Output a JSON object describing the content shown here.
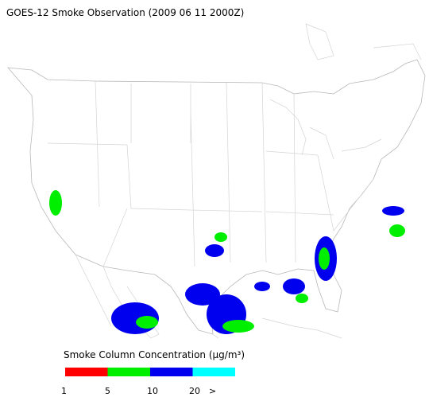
{
  "title": "GOES-12 Smoke Observation (2009 06 11  2000Z)",
  "legend": {
    "label": "Smoke Column Concentration (μg/m³)",
    "colors": [
      "#ff0000",
      "#00ee00",
      "#0000ee",
      "#00ffff"
    ],
    "tick_labels": [
      "1",
      "5",
      "10",
      "20",
      ">"
    ]
  }
}
